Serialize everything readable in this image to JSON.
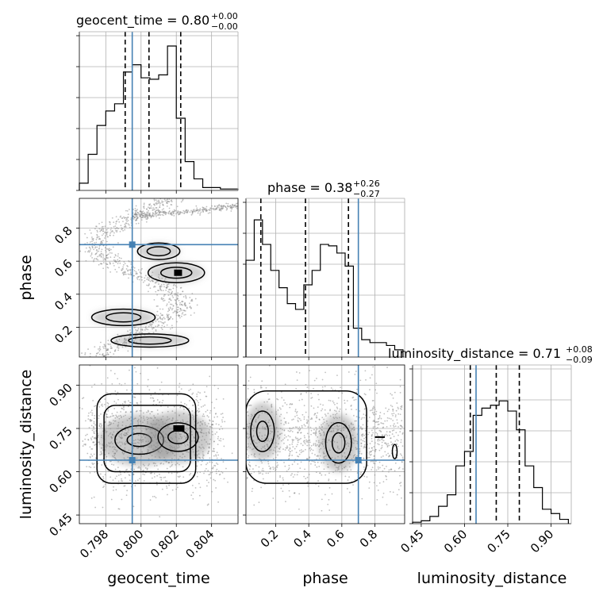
{
  "chart_data": {
    "type": "corner",
    "variables": [
      "geocent_time",
      "phase",
      "luminosity_distance"
    ],
    "colors": {
      "truth": "#4682b4",
      "hist": "#000000",
      "grid": "#b0b0b0",
      "points": "#8c8c8c"
    },
    "truths": {
      "geocent_time": 0.7995,
      "phase": 0.7,
      "luminosity_distance": 0.64
    },
    "titles": [
      {
        "name": "geocent_time",
        "value": "0.80",
        "plus": "+0.00",
        "minus": "−0.00"
      },
      {
        "name": "phase",
        "value": "0.38",
        "plus": "+0.26",
        "minus": "−0.27"
      },
      {
        "name": "luminosity_distance",
        "value": "0.71",
        "plus": "+0.08",
        "minus": "−0.09"
      }
    ],
    "axes": {
      "geocent_time": {
        "range": [
          0.7965,
          0.8055
        ],
        "ticks": [
          "0.798",
          "0.800",
          "0.802",
          "0.804"
        ]
      },
      "phase": {
        "range": [
          0.02,
          0.98
        ],
        "ticks": [
          "0.2",
          "0.4",
          "0.6",
          "0.8"
        ]
      },
      "luminosity_distance": {
        "range": [
          0.42,
          0.97
        ],
        "ticks": [
          "0.45",
          "0.60",
          "0.75",
          "0.90"
        ]
      }
    },
    "histograms": {
      "geocent_time": {
        "edges": [
          0.7965,
          0.797,
          0.7975,
          0.798,
          0.7985,
          0.799,
          0.7995,
          0.8,
          0.8005,
          0.801,
          0.8015,
          0.802,
          0.8025,
          0.803,
          0.8035,
          0.804,
          0.8045,
          0.805,
          0.8055
        ],
        "counts": [
          0.05,
          0.25,
          0.45,
          0.55,
          0.6,
          0.82,
          0.87,
          0.78,
          0.77,
          0.8,
          1.0,
          0.5,
          0.2,
          0.08,
          0.02,
          0.02,
          0.01,
          0.01
        ],
        "quantiles": [
          0.7991,
          0.80045,
          0.80225
        ]
      },
      "phase": {
        "edges": [
          0.02,
          0.07,
          0.12,
          0.17,
          0.22,
          0.27,
          0.32,
          0.37,
          0.42,
          0.47,
          0.52,
          0.57,
          0.62,
          0.67,
          0.72,
          0.77,
          0.82,
          0.87,
          0.92,
          0.97
        ],
        "counts": [
          0.67,
          0.95,
          0.78,
          0.6,
          0.48,
          0.37,
          0.33,
          0.5,
          0.6,
          0.78,
          0.77,
          0.72,
          0.63,
          0.2,
          0.12,
          0.1,
          0.1,
          0.08,
          0.05
        ],
        "quantiles": [
          0.11,
          0.38,
          0.64
        ]
      },
      "luminosity_distance": {
        "edges": [
          0.42,
          0.45,
          0.48,
          0.51,
          0.54,
          0.57,
          0.6,
          0.63,
          0.66,
          0.69,
          0.72,
          0.75,
          0.78,
          0.81,
          0.84,
          0.87,
          0.9,
          0.93,
          0.96
        ],
        "counts": [
          0.01,
          0.02,
          0.05,
          0.12,
          0.2,
          0.4,
          0.5,
          0.75,
          0.8,
          0.82,
          0.85,
          0.78,
          0.65,
          0.4,
          0.25,
          0.1,
          0.07,
          0.03
        ],
        "quantiles": [
          0.62,
          0.71,
          0.79
        ]
      }
    },
    "contour_panels": [
      {
        "x": "geocent_time",
        "y": "phase"
      },
      {
        "x": "geocent_time",
        "y": "luminosity_distance"
      },
      {
        "x": "phase",
        "y": "luminosity_distance"
      }
    ]
  }
}
